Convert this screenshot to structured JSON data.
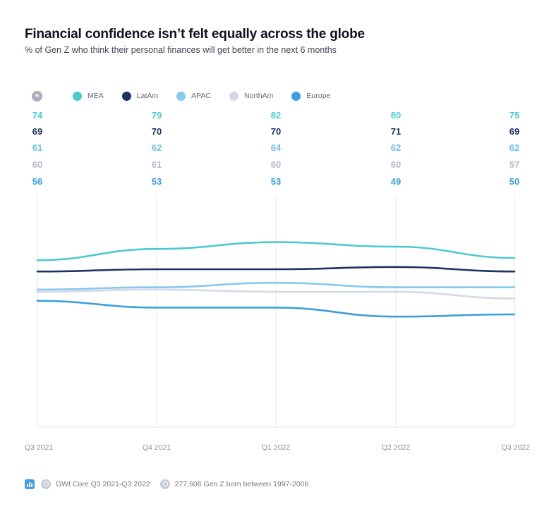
{
  "header": {
    "title": "Financial confidence isn’t felt equally across the globe",
    "subtitle": "% of Gen Z who think their personal finances will get better in the next 6 months"
  },
  "legend": {
    "badge": "%",
    "items": [
      {
        "label": "MEA",
        "color": "#4ec9d0"
      },
      {
        "label": "LatAm",
        "color": "#1d3461"
      },
      {
        "label": "APAC",
        "color": "#88c8ec"
      },
      {
        "label": "NorthAm",
        "color": "#d3d9e8"
      },
      {
        "label": "Europe",
        "color": "#3d9fdc"
      }
    ]
  },
  "chart_data": {
    "type": "line",
    "x": [
      "Q3 2021",
      "Q4 2021",
      "Q1 2022",
      "Q2 2022",
      "Q3 2022"
    ],
    "series": [
      {
        "name": "MEA",
        "values": [
          74,
          79,
          82,
          80,
          75
        ],
        "color": "#4ec9d0",
        "label_color": "#4ec9d0"
      },
      {
        "name": "LatAm",
        "values": [
          69,
          70,
          70,
          71,
          69
        ],
        "color": "#1d3461",
        "label_color": "#1d3461"
      },
      {
        "name": "APAC",
        "values": [
          61,
          62,
          64,
          62,
          62
        ],
        "color": "#88c8ec",
        "label_color": "#6fbfe6"
      },
      {
        "name": "NorthAm",
        "values": [
          60,
          61,
          60,
          60,
          57
        ],
        "color": "#d3d9e8",
        "label_color": "#b4bccb"
      },
      {
        "name": "Europe",
        "values": [
          56,
          53,
          53,
          49,
          50
        ],
        "color": "#3d9fdc",
        "label_color": "#3d9fdc"
      }
    ],
    "ylim": [
      0,
      100
    ],
    "grid": "vertical"
  },
  "footer": {
    "source": "GWI Core Q3 2021-Q3 2022",
    "sample": "277,606 Gen Z born between 1997-2006"
  }
}
